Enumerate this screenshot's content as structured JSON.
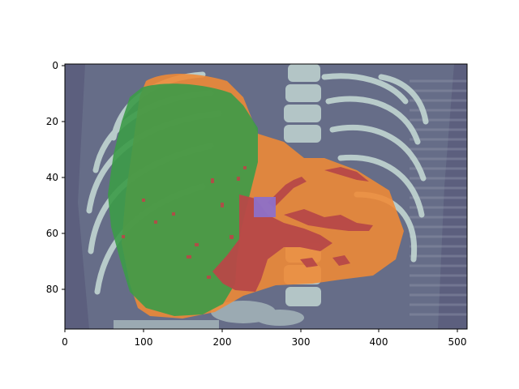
{
  "figure": {
    "type": "image_overlay",
    "content": "CT scan slice with segmentation overlay",
    "colors": {
      "background_ct": "#5c5f7e",
      "bone": "#c7dcd6",
      "green_region": "#3c9b48",
      "orange_region": "#f08a34",
      "red_region": "#b84848",
      "purple_region": "#8d70c8"
    }
  },
  "axes": {
    "x_ticks": [
      "0",
      "100",
      "200",
      "300",
      "400",
      "500"
    ],
    "y_ticks": [
      "0",
      "20",
      "40",
      "60",
      "80"
    ],
    "x_range": [
      0,
      512
    ],
    "y_range": [
      95,
      0
    ]
  }
}
